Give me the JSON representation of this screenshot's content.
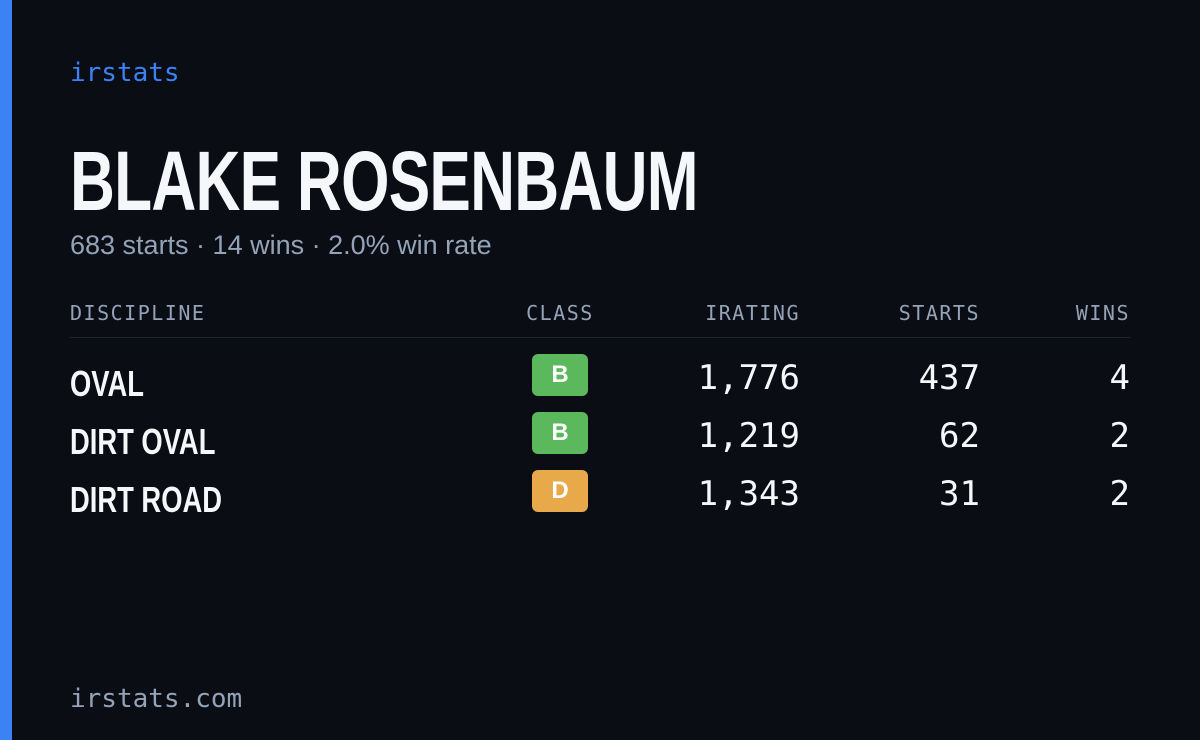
{
  "brand": "irstats",
  "title": "BLAKE ROSENBAUM",
  "subtitle": "683 starts · 14 wins · 2.0% win rate",
  "table": {
    "headers": [
      "DISCIPLINE",
      "CLASS",
      "IRATING",
      "STARTS",
      "WINS"
    ],
    "rows": [
      {
        "discipline": "OVAL",
        "class": "B",
        "class_color": "#5cb85c",
        "irating": "1,776",
        "starts": "437",
        "wins": "4"
      },
      {
        "discipline": "DIRT OVAL",
        "class": "B",
        "class_color": "#5cb85c",
        "irating": "1,219",
        "starts": "62",
        "wins": "2"
      },
      {
        "discipline": "DIRT ROAD",
        "class": "D",
        "class_color": "#e8a94a",
        "irating": "1,343",
        "starts": "31",
        "wins": "2"
      }
    ]
  },
  "footer": "irstats.com"
}
